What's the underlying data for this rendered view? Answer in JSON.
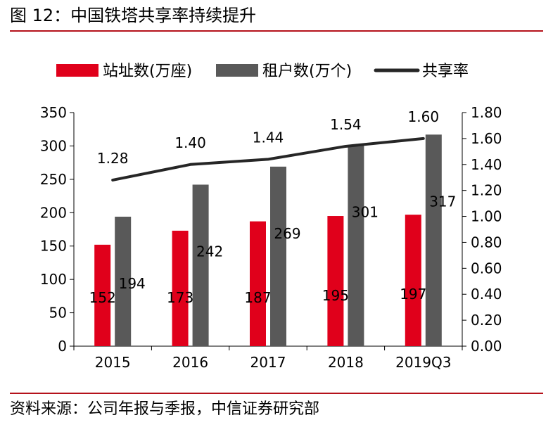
{
  "title": "图 12：中国铁塔共享率持续提升",
  "source": "资料来源：公司年报与季报，中信证券研究部",
  "chart_data": {
    "type": "bar",
    "categories": [
      "2015",
      "2016",
      "2017",
      "2018",
      "2019Q3"
    ],
    "series": [
      {
        "name": "站址数(万座)",
        "type": "bar",
        "axis": "left",
        "color": "#e0001b",
        "values": [
          152,
          173,
          187,
          195,
          197
        ]
      },
      {
        "name": "租户数(万个)",
        "type": "bar",
        "axis": "left",
        "color": "#595959",
        "values": [
          194,
          242,
          269,
          301,
          317
        ]
      },
      {
        "name": "共享率",
        "type": "line",
        "axis": "right",
        "color": "#262626",
        "values": [
          1.28,
          1.4,
          1.44,
          1.54,
          1.6
        ],
        "labels": [
          "1.28",
          "1.40",
          "1.44",
          "1.54",
          "1.60"
        ]
      }
    ],
    "y_left": {
      "min": 0,
      "max": 350,
      "step": 50,
      "ticks": [
        "0",
        "50",
        "100",
        "150",
        "200",
        "250",
        "300",
        "350"
      ]
    },
    "y_right": {
      "min": 0,
      "max": 1.8,
      "step": 0.2,
      "ticks": [
        "0.00",
        "0.20",
        "0.40",
        "0.60",
        "0.80",
        "1.00",
        "1.20",
        "1.40",
        "1.60",
        "1.80"
      ]
    },
    "legend_position": "top",
    "grid": false
  }
}
